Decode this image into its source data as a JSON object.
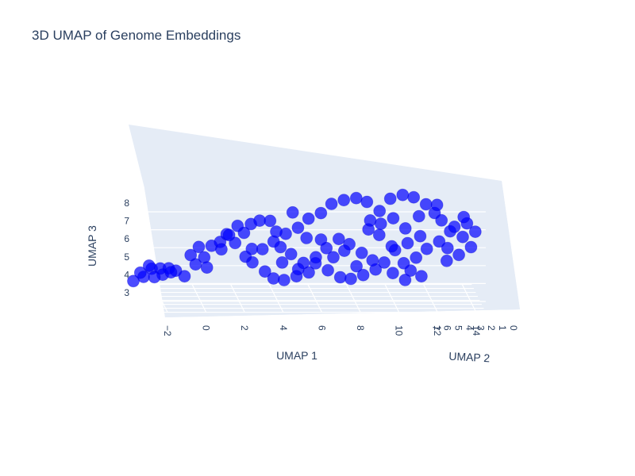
{
  "chart_data": {
    "type": "scatter3d",
    "title": "3D UMAP of Genome Embeddings",
    "x_axis": {
      "label": "UMAP 1",
      "ticks": [
        "−2",
        "0",
        "2",
        "4",
        "6",
        "8",
        "10",
        "12",
        "14"
      ],
      "range": [
        -3.5,
        14.5
      ]
    },
    "y_axis": {
      "label": "UMAP 2",
      "ticks": [
        "0",
        "1",
        "2",
        "3",
        "4",
        "5",
        "6",
        "7"
      ],
      "range": [
        0,
        7
      ]
    },
    "z_axis": {
      "label": "UMAP 3",
      "ticks": [
        "3",
        "4",
        "5",
        "6",
        "7",
        "8"
      ],
      "range": [
        2.4,
        8.6
      ]
    },
    "marker_color": "#0000ff",
    "marker_opacity": 0.7,
    "grid": true,
    "legend": "none",
    "series": [
      {
        "points": [
          [
            -3.1,
            6.5,
            2.7
          ],
          [
            -2.6,
            6.2,
            3.0
          ],
          [
            -2.8,
            5.9,
            3.3
          ],
          [
            -2.2,
            6.0,
            3.5
          ],
          [
            -1.8,
            5.6,
            3.6
          ],
          [
            -1.4,
            5.2,
            3.7
          ],
          [
            -1.0,
            5.5,
            3.5
          ],
          [
            -1.6,
            6.3,
            3.1
          ],
          [
            -2.0,
            6.6,
            2.9
          ],
          [
            -0.6,
            5.0,
            3.3
          ],
          [
            0.0,
            5.3,
            3.9
          ],
          [
            0.4,
            4.8,
            4.4
          ],
          [
            0.2,
            5.6,
            4.8
          ],
          [
            0.8,
            5.0,
            5.0
          ],
          [
            1.2,
            4.6,
            5.3
          ],
          [
            1.6,
            5.2,
            5.6
          ],
          [
            2.0,
            4.8,
            5.2
          ],
          [
            1.4,
            5.9,
            4.6
          ],
          [
            2.4,
            4.2,
            5.9
          ],
          [
            2.8,
            4.6,
            6.3
          ],
          [
            3.2,
            4.1,
            6.6
          ],
          [
            2.6,
            5.4,
            4.3
          ],
          [
            3.0,
            5.8,
            3.9
          ],
          [
            3.6,
            5.3,
            3.5
          ],
          [
            4.0,
            4.9,
            3.2
          ],
          [
            4.6,
            5.4,
            3.0
          ],
          [
            5.2,
            5.0,
            3.3
          ],
          [
            5.8,
            4.6,
            3.6
          ],
          [
            6.2,
            5.1,
            4.0
          ],
          [
            6.8,
            4.7,
            3.7
          ],
          [
            7.4,
            4.3,
            3.4
          ],
          [
            8.0,
            4.8,
            3.2
          ],
          [
            8.6,
            4.4,
            3.5
          ],
          [
            9.2,
            4.0,
            3.9
          ],
          [
            9.0,
            3.6,
            4.5
          ],
          [
            8.4,
            3.2,
            5.0
          ],
          [
            7.8,
            3.6,
            5.4
          ],
          [
            7.2,
            3.1,
            5.8
          ],
          [
            6.6,
            3.5,
            5.2
          ],
          [
            6.0,
            3.0,
            4.8
          ],
          [
            5.4,
            3.4,
            4.4
          ],
          [
            4.8,
            3.8,
            4.8
          ],
          [
            4.2,
            3.3,
            5.3
          ],
          [
            3.8,
            2.9,
            5.7
          ],
          [
            4.4,
            2.6,
            6.2
          ],
          [
            5.0,
            2.3,
            6.6
          ],
          [
            5.6,
            2.8,
            7.0
          ],
          [
            6.2,
            2.4,
            7.4
          ],
          [
            6.8,
            2.9,
            7.8
          ],
          [
            7.4,
            2.5,
            8.1
          ],
          [
            8.0,
            2.1,
            8.3
          ],
          [
            8.6,
            2.5,
            8.0
          ],
          [
            9.2,
            2.0,
            7.6
          ],
          [
            9.8,
            2.4,
            8.2
          ],
          [
            10.4,
            2.0,
            8.5
          ],
          [
            11.0,
            2.3,
            8.3
          ],
          [
            11.6,
            1.9,
            8.0
          ],
          [
            12.0,
            1.5,
            7.6
          ],
          [
            12.4,
            1.9,
            7.1
          ],
          [
            12.8,
            1.4,
            6.6
          ],
          [
            12.2,
            1.1,
            6.1
          ],
          [
            11.6,
            1.5,
            5.6
          ],
          [
            11.0,
            1.1,
            5.2
          ],
          [
            10.4,
            1.5,
            4.8
          ],
          [
            10.8,
            1.9,
            4.3
          ],
          [
            11.4,
            2.3,
            3.9
          ],
          [
            10.6,
            2.7,
            3.6
          ],
          [
            10.0,
            3.1,
            3.9
          ],
          [
            9.6,
            3.5,
            4.4
          ],
          [
            10.2,
            3.9,
            5.0
          ],
          [
            10.8,
            3.4,
            5.5
          ],
          [
            11.4,
            2.9,
            6.0
          ],
          [
            10.6,
            2.6,
            6.5
          ],
          [
            10.0,
            2.9,
            7.0
          ],
          [
            9.4,
            3.3,
            6.6
          ],
          [
            8.8,
            3.7,
            6.2
          ],
          [
            9.4,
            4.1,
            5.8
          ],
          [
            13.0,
            1.2,
            6.9
          ],
          [
            13.4,
            0.9,
            6.4
          ],
          [
            13.8,
            0.6,
            5.9
          ],
          [
            13.2,
            0.9,
            5.4
          ],
          [
            12.6,
            1.2,
            5.0
          ],
          [
            14.0,
            0.4,
            6.8
          ],
          [
            13.6,
            0.7,
            7.2
          ],
          [
            2.2,
            5.5,
            6.0
          ],
          [
            1.8,
            5.9,
            5.4
          ],
          [
            3.4,
            4.6,
            4.9
          ],
          [
            4.4,
            4.4,
            4.2
          ],
          [
            5.2,
            4.1,
            3.9
          ],
          [
            7.0,
            3.9,
            4.6
          ],
          [
            7.6,
            4.2,
            4.9
          ],
          [
            8.2,
            3.9,
            4.1
          ],
          [
            6.4,
            4.3,
            5.5
          ],
          [
            5.6,
            3.8,
            5.7
          ],
          [
            3.6,
            2.7,
            6.9
          ],
          [
            4.8,
            3.0,
            7.3
          ],
          [
            12.2,
            2.2,
            7.9
          ],
          [
            11.2,
            1.6,
            7.4
          ],
          [
            -0.2,
            5.8,
            4.3
          ],
          [
            0.6,
            5.4,
            3.7
          ],
          [
            -2.4,
            5.4,
            3.8
          ],
          [
            -1.2,
            6.0,
            3.3
          ],
          [
            2.9,
            5.1,
            4.8
          ],
          [
            9.8,
            1.7,
            5.7
          ],
          [
            8.8,
            2.8,
            6.9
          ],
          [
            12.6,
            0.8,
            5.8
          ],
          [
            13.5,
            1.4,
            7.4
          ],
          [
            4.1,
            4.5,
            5.9
          ]
        ]
      }
    ]
  }
}
